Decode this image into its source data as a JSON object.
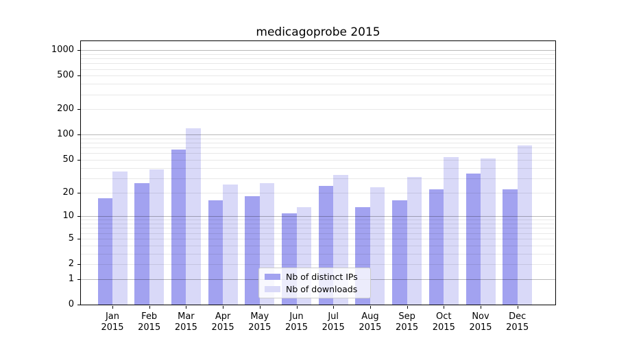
{
  "chart_data": {
    "type": "bar",
    "title": "medicagoprobe 2015",
    "xlabel": "",
    "ylabel": "",
    "months": [
      "Jan",
      "Feb",
      "Mar",
      "Apr",
      "May",
      "Jun",
      "Jul",
      "Aug",
      "Sep",
      "Oct",
      "Nov",
      "Dec"
    ],
    "year_label": "2015",
    "series": [
      {
        "name": "Nb of distinct IPs",
        "color": "#a2a2f0",
        "values": [
          17,
          26,
          66,
          16,
          18,
          11,
          24,
          13,
          16,
          22,
          34,
          22
        ]
      },
      {
        "name": "Nb of downloads",
        "color": "#d9d9f8",
        "values": [
          36,
          38,
          120,
          25,
          26,
          13,
          33,
          23,
          31,
          54,
          52,
          75
        ]
      }
    ],
    "yscale": "log1p",
    "y_ticks": [
      0,
      1,
      2,
      5,
      10,
      20,
      50,
      100,
      200,
      500,
      1000
    ],
    "ylim": [
      0,
      1280
    ],
    "grid": true,
    "legend_position": "lower-center"
  }
}
